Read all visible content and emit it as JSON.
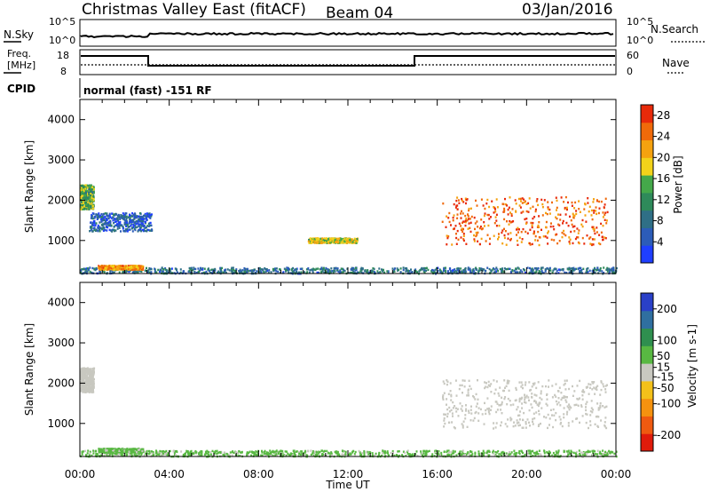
{
  "header": {
    "station": "Christmas Valley East (fitACF)",
    "beam": "Beam 04",
    "date": "03/Jan/2016"
  },
  "top_panels": {
    "nsky_label": "N.Sky",
    "nsky_ticks": [
      "10^5",
      "10^0"
    ],
    "nsearch_label": "N.Search",
    "nsearch_ticks": [
      "10^5",
      "10^0"
    ],
    "freq_label_1": "Freq.",
    "freq_label_2": "[MHz]",
    "freq_ticks": [
      "18",
      "8"
    ],
    "nave_label": "Nave",
    "nave_ticks": [
      "60",
      "0"
    ],
    "cpid_label": "CPID",
    "cpid_text": "normal (fast) -151 RF"
  },
  "colors": {
    "power_scale": [
      "#1f3fff",
      "#2c5cb8",
      "#2f6f86",
      "#2e8a5a",
      "#44a84a",
      "#f2d21a",
      "#f5a20f",
      "#f06a0a",
      "#e82a0a"
    ],
    "velocity_scale": [
      "#e01b0b",
      "#ef5a10",
      "#f5920f",
      "#f3c11a",
      "#c8c8c0",
      "#58b842",
      "#2f8f4f",
      "#2f6fa0",
      "#2a40c8"
    ]
  },
  "chart_data": [
    {
      "type": "heatmap",
      "name": "power",
      "xlabel": "",
      "ylabel": "Slant Range [km]",
      "x_ticks": [
        "00:00",
        "04:00",
        "08:00",
        "12:00",
        "16:00",
        "20:00",
        "00:00"
      ],
      "x_range_hours": [
        0,
        24
      ],
      "y_ticks": [
        1000,
        2000,
        3000,
        4000
      ],
      "ylim": [
        180,
        4500
      ],
      "colorbar": {
        "label": "Power [dB]",
        "ticks": [
          28,
          24,
          20,
          16,
          12,
          8,
          4
        ],
        "range": [
          0,
          30
        ]
      },
      "echo_regions": [
        {
          "desc": "near-range scatter",
          "t": [
            0,
            24
          ],
          "range_km": [
            200,
            350
          ],
          "power_db": 8
        },
        {
          "desc": "early-evening band",
          "t": [
            0.8,
            2.8
          ],
          "range_km": [
            300,
            400
          ],
          "power_db": 22
        },
        {
          "desc": "early echo",
          "t": [
            0,
            0.6
          ],
          "range_km": [
            1800,
            2400
          ],
          "power_db": 14
        },
        {
          "desc": "descending trail",
          "t": [
            0.4,
            3.2
          ],
          "range_km": [
            1250,
            1700
          ],
          "power_db": 6
        },
        {
          "desc": "midday patch",
          "t": [
            10.2,
            12.4
          ],
          "range_km": [
            960,
            1080
          ],
          "power_db": 18
        },
        {
          "desc": "evening band",
          "t": [
            16.2,
            23.6
          ],
          "range_km": [
            900,
            2100
          ],
          "power_db": 26
        }
      ]
    },
    {
      "type": "heatmap",
      "name": "velocity",
      "xlabel": "Time UT",
      "ylabel": "Slant Range [km]",
      "x_ticks": [
        "00:00",
        "04:00",
        "08:00",
        "12:00",
        "16:00",
        "20:00",
        "00:00"
      ],
      "x_range_hours": [
        0,
        24
      ],
      "y_ticks": [
        1000,
        2000,
        3000,
        4000
      ],
      "ylim": [
        180,
        4500
      ],
      "colorbar": {
        "label": "Velocity [m s-1]",
        "ticks": [
          200,
          100,
          50,
          15,
          -15,
          -50,
          -100,
          -200
        ],
        "range": [
          -250,
          250
        ]
      },
      "echo_regions": [
        {
          "desc": "near-range scatter",
          "t": [
            0,
            24
          ],
          "range_km": [
            200,
            350
          ],
          "velocity_ms": 40
        },
        {
          "desc": "early-evening band",
          "t": [
            0.8,
            2.8
          ],
          "range_km": [
            300,
            400
          ],
          "velocity_ms": 40
        },
        {
          "desc": "early echo",
          "t": [
            0,
            0.6
          ],
          "range_km": [
            1800,
            2400
          ],
          "velocity_ms": 0
        },
        {
          "desc": "evening band",
          "t": [
            16.2,
            23.6
          ],
          "range_km": [
            900,
            2100
          ],
          "velocity_ms": 0
        }
      ]
    }
  ]
}
